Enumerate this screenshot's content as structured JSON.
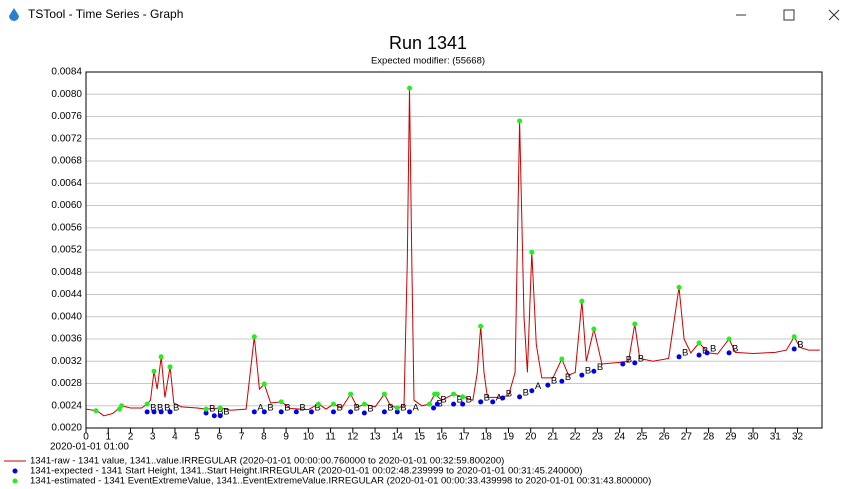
{
  "window": {
    "title": "TSTool - Time Series - Graph"
  },
  "chart_data": {
    "type": "line",
    "title": "Run 1341",
    "subtitle": "Expected modifier: (55668)",
    "x_label": "2020-01-01 01:00",
    "xlim": [
      0,
      33.1
    ],
    "xticks": [
      0,
      1,
      2,
      3,
      4,
      5,
      6,
      7,
      8,
      9,
      10,
      11,
      12,
      13,
      14,
      15,
      16,
      17,
      18,
      19,
      20,
      21,
      22,
      23,
      24,
      25,
      26,
      27,
      28,
      29,
      30,
      31,
      32
    ],
    "ylim": [
      0.002,
      0.0084
    ],
    "yticks": [
      {
        "value": 0.002,
        "label": "0.0020"
      },
      {
        "value": 0.0024,
        "label": "0.0024"
      },
      {
        "value": 0.0028,
        "label": "0.0028"
      },
      {
        "value": 0.0032,
        "label": "0.0032"
      },
      {
        "value": 0.0036,
        "label": "0.0036"
      },
      {
        "value": 0.004,
        "label": "0.0040"
      },
      {
        "value": 0.0044,
        "label": "0.0044"
      },
      {
        "value": 0.0048,
        "label": "0.0048"
      },
      {
        "value": 0.0052,
        "label": "0.0052"
      },
      {
        "value": 0.0056,
        "label": "0.0056"
      },
      {
        "value": 0.006,
        "label": "0.0060"
      },
      {
        "value": 0.0064,
        "label": "0.0064"
      },
      {
        "value": 0.0068,
        "label": "0.0068"
      },
      {
        "value": 0.0072,
        "label": "0.0072"
      },
      {
        "value": 0.0076,
        "label": "0.0076"
      },
      {
        "value": 0.008,
        "label": "0.0080"
      },
      {
        "value": 0.0084,
        "label": "0.0084"
      }
    ],
    "grid": true,
    "legend": "bottom",
    "series": [
      {
        "name": "1341-raw - 1341 value, 1341..value.IRREGULAR (2020-01-01 00:00:00.760000 to 2020-01-01 00:32:59.800200)",
        "style": "line",
        "color": "#cc0000",
        "x": [
          0,
          0.5,
          0.8,
          1.2,
          1.6,
          2.0,
          2.5,
          2.75,
          2.9,
          3.06,
          3.2,
          3.38,
          3.55,
          3.78,
          3.95,
          4.3,
          5.0,
          5.4,
          6.04,
          6.5,
          7.2,
          7.57,
          7.8,
          8.02,
          8.3,
          8.78,
          9.2,
          10.0,
          10.45,
          10.8,
          11.13,
          11.5,
          11.9,
          12.2,
          12.52,
          13.0,
          13.42,
          13.7,
          14.0,
          14.3,
          14.45,
          14.55,
          14.65,
          14.75,
          15.1,
          15.45,
          15.68,
          16.0,
          16.53,
          16.94,
          17.4,
          17.6,
          17.75,
          17.9,
          18.05,
          18.5,
          19.0,
          19.3,
          19.5,
          19.7,
          19.85,
          20.05,
          20.25,
          20.5,
          21.0,
          21.4,
          21.7,
          22.0,
          22.3,
          22.5,
          22.84,
          23.2,
          24.0,
          24.4,
          24.68,
          24.9,
          25.5,
          26.2,
          26.67,
          26.9,
          27.2,
          27.57,
          28.0,
          28.4,
          28.92,
          29.2,
          30.0,
          31.0,
          31.5,
          31.85,
          32.1,
          32.5,
          33.0
        ],
        "values": [
          0.00234,
          0.00231,
          0.00222,
          0.00226,
          0.0024,
          0.00236,
          0.00236,
          0.00243,
          0.0025,
          0.00302,
          0.0027,
          0.00328,
          0.00255,
          0.0031,
          0.00245,
          0.00238,
          0.00236,
          0.00234,
          0.00236,
          0.00232,
          0.00234,
          0.00364,
          0.0027,
          0.00279,
          0.00245,
          0.00247,
          0.00235,
          0.00233,
          0.00243,
          0.00234,
          0.00243,
          0.00236,
          0.00261,
          0.00237,
          0.00243,
          0.00238,
          0.00261,
          0.0024,
          0.00236,
          0.0024,
          0.005,
          0.00811,
          0.005,
          0.0025,
          0.0024,
          0.00243,
          0.00261,
          0.0025,
          0.00261,
          0.00256,
          0.0025,
          0.003,
          0.00383,
          0.003,
          0.00255,
          0.00255,
          0.00258,
          0.003,
          0.00752,
          0.004,
          0.003,
          0.00516,
          0.0035,
          0.0029,
          0.0029,
          0.00324,
          0.00295,
          0.003,
          0.00428,
          0.0032,
          0.00378,
          0.00315,
          0.00318,
          0.0032,
          0.00387,
          0.00325,
          0.0032,
          0.00325,
          0.00453,
          0.0036,
          0.00335,
          0.00353,
          0.00335,
          0.00333,
          0.0036,
          0.00336,
          0.00334,
          0.00336,
          0.0034,
          0.00364,
          0.00345,
          0.0034,
          0.0034
        ]
      },
      {
        "name": "1341-expected - 1341 Start Height, 1341..Start Height.IRREGULAR (2020-01-01 00:02:48.239999 to 2020-01-01 00:31:45.240000)",
        "style": "markers",
        "color": "#0000ee",
        "x": [
          2.75,
          3.06,
          3.38,
          3.78,
          5.4,
          5.77,
          6.04,
          7.57,
          8.02,
          8.78,
          9.46,
          10.14,
          11.13,
          11.9,
          12.52,
          13.42,
          14.0,
          14.55,
          15.63,
          15.8,
          16.53,
          16.94,
          17.75,
          18.29,
          18.74,
          19.5,
          20.05,
          20.77,
          21.4,
          22.3,
          22.84,
          24.14,
          24.68,
          26.67,
          27.57,
          27.93,
          28.92,
          31.85
        ],
        "values": [
          0.00229,
          0.00229,
          0.00229,
          0.00229,
          0.00227,
          0.00222,
          0.00222,
          0.00229,
          0.00229,
          0.00229,
          0.00229,
          0.00229,
          0.00229,
          0.00229,
          0.00227,
          0.00229,
          0.00229,
          0.00229,
          0.00236,
          0.00243,
          0.00243,
          0.00243,
          0.00247,
          0.00247,
          0.00254,
          0.00256,
          0.00267,
          0.00277,
          0.00284,
          0.00295,
          0.00302,
          0.00315,
          0.00317,
          0.00328,
          0.00331,
          0.00335,
          0.00335,
          0.00342
        ],
        "flags": [
          "B",
          "B",
          "B",
          "B",
          "B",
          "B",
          "B",
          "A",
          "B",
          "B",
          "B",
          "B",
          "B",
          "B",
          "B",
          "B",
          "B",
          "A",
          "B",
          "B",
          "B",
          "B",
          "B",
          "A",
          "B",
          "B",
          "A",
          "B",
          "B",
          "B",
          "B",
          "B",
          "B",
          "B",
          "B",
          "B",
          "B",
          "B"
        ]
      },
      {
        "name": "1341-estimated - 1341 EventExtremeValue, 1341..EventExtremeValue.IRREGULAR (2020-01-01 00:00:33.439998 to 2020-01-01 00:31:43.800000)",
        "style": "markers",
        "color": "#22ee22",
        "x": [
          0.45,
          1.5,
          1.6,
          2.75,
          3.06,
          3.38,
          3.78,
          5.4,
          6.04,
          7.57,
          8.02,
          8.78,
          10.45,
          11.13,
          11.9,
          12.52,
          13.42,
          14.0,
          14.55,
          15.45,
          15.68,
          15.8,
          16.53,
          16.94,
          17.75,
          19.5,
          20.05,
          21.4,
          22.3,
          22.84,
          24.68,
          26.67,
          27.57,
          28.92,
          31.85
        ],
        "values": [
          0.00231,
          0.00234,
          0.0024,
          0.00243,
          0.00302,
          0.00328,
          0.0031,
          0.00234,
          0.00236,
          0.00364,
          0.00279,
          0.00247,
          0.00243,
          0.00243,
          0.00261,
          0.00243,
          0.00261,
          0.00236,
          0.00811,
          0.00243,
          0.00261,
          0.00261,
          0.00261,
          0.00256,
          0.00383,
          0.00752,
          0.00516,
          0.00324,
          0.00428,
          0.00378,
          0.00387,
          0.00453,
          0.00353,
          0.0036,
          0.00364
        ]
      }
    ]
  }
}
